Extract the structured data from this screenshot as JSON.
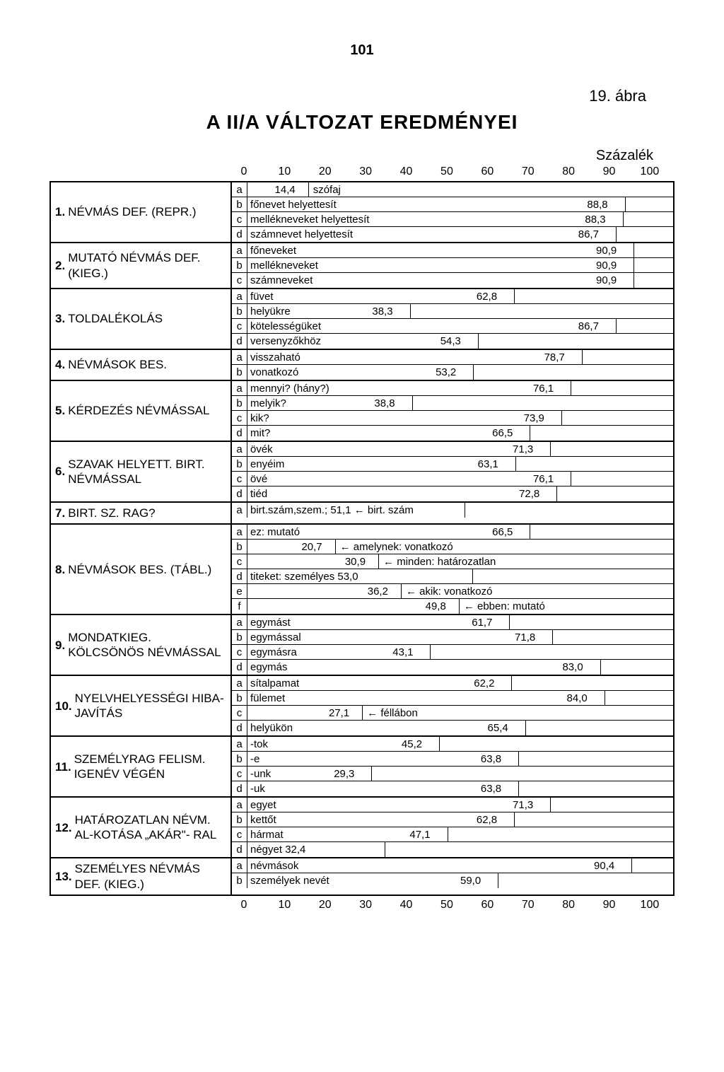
{
  "page_number": "101",
  "figure_label": "19. ábra",
  "title": "A II/A VÁLTOZAT EREDMÉNYEI",
  "scale_label": "Százalék",
  "axis_ticks": [
    "0",
    "10",
    "20",
    "30",
    "40",
    "50",
    "60",
    "70",
    "80",
    "90",
    "100"
  ],
  "bar_domain_max": 100,
  "sections": [
    {
      "num": "1.",
      "label": "NÉVMÁS DEF. (REPR.)",
      "rows": [
        {
          "key": "a",
          "text": "szófaj",
          "value": 14.4,
          "val_label": "14,4",
          "valpos": "before"
        },
        {
          "key": "b",
          "text": "főnevet helyettesít",
          "value": 88.8,
          "val_label": "88,8"
        },
        {
          "key": "c",
          "text": "mellékneveket helyettesít",
          "value": 88.3,
          "val_label": "88,3"
        },
        {
          "key": "d",
          "text": "számnevet helyettesít",
          "value": 86.7,
          "val_label": "86,7"
        }
      ]
    },
    {
      "num": "2.",
      "label": "MUTATÓ NÉVMÁS DEF. (KIEG.)",
      "rows": [
        {
          "key": "a",
          "text": "főneveket",
          "value": 90.9,
          "val_label": "90,9"
        },
        {
          "key": "b",
          "text": "mellékneveket",
          "value": 90.9,
          "val_label": "90,9"
        },
        {
          "key": "c",
          "text": "számneveket",
          "value": 90.9,
          "val_label": "90,9"
        }
      ]
    },
    {
      "num": "3.",
      "label": "TOLDALÉKOLÁS",
      "rows": [
        {
          "key": "a",
          "text": "füvet",
          "value": 62.8,
          "val_label": "62,8"
        },
        {
          "key": "b",
          "text": "helyükre",
          "value": 38.3,
          "val_label": "38,3"
        },
        {
          "key": "c",
          "text": "kötelességüket",
          "value": 86.7,
          "val_label": "86,7"
        },
        {
          "key": "d",
          "text": "versenyzőkhöz",
          "value": 54.3,
          "val_label": "54,3"
        }
      ]
    },
    {
      "num": "4.",
      "label": "NÉVMÁSOK BES.",
      "rows": [
        {
          "key": "a",
          "text": "visszaható",
          "value": 78.7,
          "val_label": "78,7"
        },
        {
          "key": "b",
          "text": "vonatkozó",
          "value": 53.2,
          "val_label": "53,2"
        }
      ]
    },
    {
      "num": "5.",
      "label": "KÉRDEZÉS NÉVMÁSSAL",
      "rows": [
        {
          "key": "a",
          "text": "mennyi? (hány?)",
          "value": 76.1,
          "val_label": "76,1"
        },
        {
          "key": "b",
          "text": "melyik?",
          "value": 38.8,
          "val_label": "38,8"
        },
        {
          "key": "c",
          "text": "kik?",
          "value": 73.9,
          "val_label": "73,9"
        },
        {
          "key": "d",
          "text": "mit?",
          "value": 66.5,
          "val_label": "66,5"
        }
      ]
    },
    {
      "num": "6.",
      "label": "SZAVAK HELYETT. BIRT. NÉVMÁSSAL",
      "rows": [
        {
          "key": "a",
          "text": "övék",
          "value": 71.3,
          "val_label": "71,3"
        },
        {
          "key": "b",
          "text": "enyéim",
          "value": 63.1,
          "val_label": "63,1"
        },
        {
          "key": "c",
          "text": "övé",
          "value": 76.1,
          "val_label": "76,1"
        },
        {
          "key": "d",
          "text": "tiéd",
          "value": 72.8,
          "val_label": "72,8"
        }
      ]
    },
    {
      "num": "7.",
      "label": "BIRT. SZ. RAG?",
      "rows": [
        {
          "key": "a",
          "text": "birt.szám,szem.; 51,1 ← birt. szám",
          "value": 51.1,
          "val_label": "",
          "nobox": true
        }
      ]
    },
    {
      "num": "8.",
      "label": "NÉVMÁSOK BES. (TÁBL.)",
      "rows": [
        {
          "key": "a",
          "text": "ez: mutató",
          "value": 66.5,
          "val_label": "66,5"
        },
        {
          "key": "b",
          "text": "← amelynek: vonatkozó",
          "value": 20.7,
          "val_label": "20,7",
          "valpos": "before"
        },
        {
          "key": "c",
          "text": "← minden: határozatlan",
          "value": 30.9,
          "val_label": "30,9",
          "valpos": "before"
        },
        {
          "key": "d",
          "text": "titeket: személyes 53,0",
          "value": 53.0,
          "val_label": ""
        },
        {
          "key": "e",
          "text": "← akik: vonatkozó",
          "value": 36.2,
          "val_label": "36,2",
          "valpos": "before"
        },
        {
          "key": "f",
          "text": "← ebben: mutató",
          "value": 49.8,
          "val_label": "49,8",
          "valpos": "before"
        }
      ]
    },
    {
      "num": "9.",
      "label": "MONDATKIEG. KÖLCSÖNÖS NÉVMÁSSAL",
      "rows": [
        {
          "key": "a",
          "text": "egymást",
          "value": 61.7,
          "val_label": "61,7"
        },
        {
          "key": "b",
          "text": "egymással",
          "value": 71.8,
          "val_label": "71,8"
        },
        {
          "key": "c",
          "text": "egymásra",
          "value": 43.1,
          "val_label": "43,1"
        },
        {
          "key": "d",
          "text": "egymás",
          "value": 83.0,
          "val_label": "83,0"
        }
      ]
    },
    {
      "num": "10.",
      "label": "NYELVHELYESSÉGI HIBA-JAVÍTÁS",
      "rows": [
        {
          "key": "a",
          "text": "sítalpamat",
          "value": 62.2,
          "val_label": "62,2"
        },
        {
          "key": "b",
          "text": "fülemet",
          "value": 84.0,
          "val_label": "84,0"
        },
        {
          "key": "c",
          "text": "← féllábon",
          "value": 27.1,
          "val_label": "27,1",
          "valpos": "before"
        },
        {
          "key": "d",
          "text": "helyükön",
          "value": 65.4,
          "val_label": "65,4"
        }
      ]
    },
    {
      "num": "11.",
      "label": "SZEMÉLYRAG FELISM. IGENÉV VÉGÉN",
      "rows": [
        {
          "key": "a",
          "text": "-tok",
          "value": 45.2,
          "val_label": "45,2"
        },
        {
          "key": "b",
          "text": "-e",
          "value": 63.8,
          "val_label": "63,8"
        },
        {
          "key": "c",
          "text": "-unk",
          "value": 29.3,
          "val_label": "29,3"
        },
        {
          "key": "d",
          "text": "-uk",
          "value": 63.8,
          "val_label": "63,8"
        }
      ]
    },
    {
      "num": "12.",
      "label": "HATÁROZATLAN NÉVM. AL-KOTÁSA „AKÁR\"- RAL",
      "rows": [
        {
          "key": "a",
          "text": "egyet",
          "value": 71.3,
          "val_label": "71,3"
        },
        {
          "key": "b",
          "text": "kettőt",
          "value": 62.8,
          "val_label": "62,8"
        },
        {
          "key": "c",
          "text": "hármat",
          "value": 47.1,
          "val_label": "47,1"
        },
        {
          "key": "d",
          "text": "négyet 32,4",
          "value": 32.4,
          "val_label": ""
        }
      ]
    },
    {
      "num": "13.",
      "label": "SZEMÉLYES NÉVMÁS DEF. (KIEG.)",
      "rows": [
        {
          "key": "a",
          "text": "névmások",
          "value": 90.4,
          "val_label": "90,4"
        },
        {
          "key": "b",
          "text": "személyek nevét",
          "value": 59.0,
          "val_label": "59,0"
        }
      ]
    }
  ]
}
